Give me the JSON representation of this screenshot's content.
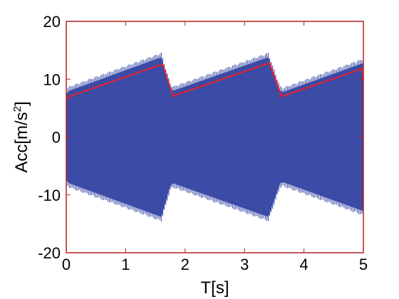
{
  "chart_data": {
    "type": "area",
    "xlabel": "T[s]",
    "ylabel": "Acc[m/s2]",
    "ylabel_main": "Acc[m/s",
    "ylabel_sup": "2",
    "ylabel_close": "]",
    "xlim": [
      0,
      5
    ],
    "ylim": [
      -20,
      20
    ],
    "xticks": [
      0,
      1,
      2,
      3,
      4,
      5
    ],
    "yticks": [
      -20,
      -10,
      0,
      10,
      20
    ],
    "xtick_labels": [
      "0",
      "1",
      "2",
      "3",
      "4",
      "5"
    ],
    "ytick_labels": [
      "-20",
      "-10",
      "0",
      "10",
      "20"
    ],
    "grid": false,
    "axes_color": "#b22222",
    "series": [
      {
        "style": "filled-oscillation",
        "color": "#3b4ba6",
        "x": [
          0,
          0.05,
          1.6,
          1.75,
          1.8,
          3.4,
          3.6,
          3.65,
          5.0
        ],
        "upper": [
          7.5,
          8.0,
          13.8,
          8.5,
          8.0,
          13.8,
          8.0,
          7.8,
          12.8
        ],
        "lower": [
          -7.5,
          -8.0,
          -13.8,
          -8.5,
          -8.0,
          -13.8,
          -8.0,
          -7.8,
          -12.8
        ]
      },
      {
        "style": "line",
        "color": "#e8202a",
        "x": [
          0,
          0.05,
          1.62,
          1.8,
          1.85,
          3.42,
          3.62,
          3.68,
          4.98,
          5.0
        ],
        "y": [
          6.5,
          7.0,
          12.6,
          7.0,
          7.3,
          12.8,
          7.0,
          7.2,
          11.8,
          10.0
        ]
      }
    ]
  }
}
